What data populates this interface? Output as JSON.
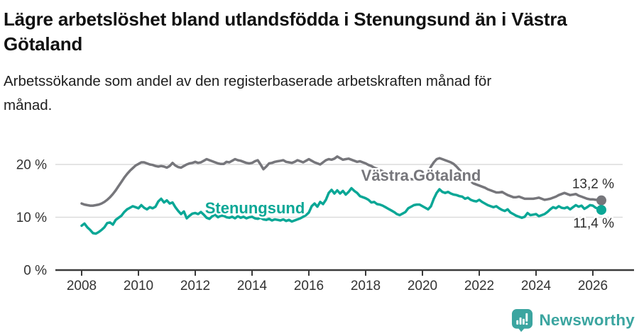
{
  "header": {
    "title": "Lägre arbetslöshet bland utlandsfödda i Stenungsund än i Västra Götaland",
    "subtitle": "Arbetssökande som andel av den registerbaserade arbetskraften månad för månad."
  },
  "footer": {
    "brand_name": "Newsworthy",
    "logo_icon": "bar-chart-speech-bubble-icon",
    "brand_color": "#3ba5a0"
  },
  "colors": {
    "stenungsund_line": "#0aa796",
    "vastra_gotaland_line": "#76767b",
    "axis": "#3a3a3a",
    "grid": "#dcdcdc",
    "text": "#111111"
  },
  "chart_data": {
    "type": "line",
    "title": "Lägre arbetslöshet bland utlandsfödda i Stenungsund än i Västra Götaland",
    "subtitle": "Arbetssökande som andel av den registerbaserade arbetskraften månad för månad.",
    "xlabel": "",
    "ylabel": "",
    "y_unit": "%",
    "ylim": [
      0,
      25
    ],
    "xlim": [
      2007.1,
      2027.5
    ],
    "grid": "horizontal",
    "legend_position": "inline-labels",
    "x_tick_values": [
      2008,
      2010,
      2012,
      2014,
      2016,
      2018,
      2020,
      2022,
      2024,
      2026
    ],
    "x_tick_labels": [
      "2008",
      "2010",
      "2012",
      "2014",
      "2016",
      "2018",
      "2020",
      "2022",
      "2024",
      "2026"
    ],
    "y_tick_values": [
      0,
      10,
      20
    ],
    "y_tick_labels": [
      "0 %",
      "10 %",
      "20 %"
    ],
    "x_start": 2008.0,
    "x_step": 0.1,
    "series": [
      {
        "name": "Västra Götaland",
        "color": "#76767b",
        "end_label": "13,2 %",
        "end_value": 13.2,
        "inline_label_pos": {
          "x": 2019.95,
          "y": 18.0
        },
        "end_label_side": "above",
        "values": [
          12.6,
          12.4,
          12.3,
          12.2,
          12.2,
          12.3,
          12.4,
          12.6,
          12.9,
          13.3,
          13.8,
          14.4,
          15.1,
          15.9,
          16.7,
          17.5,
          18.2,
          18.8,
          19.3,
          19.8,
          20.1,
          20.4,
          20.4,
          20.2,
          20.0,
          19.9,
          19.7,
          19.6,
          19.7,
          19.6,
          19.4,
          19.7,
          20.3,
          19.8,
          19.5,
          19.4,
          19.7,
          20.0,
          20.2,
          20.3,
          20.5,
          20.3,
          20.4,
          20.7,
          21.0,
          20.8,
          20.6,
          20.4,
          20.2,
          20.1,
          20.1,
          20.5,
          20.4,
          20.7,
          21.0,
          20.8,
          20.7,
          20.5,
          20.3,
          20.2,
          20.3,
          20.6,
          20.8,
          20.0,
          19.1,
          19.6,
          20.2,
          20.3,
          20.5,
          20.6,
          20.7,
          20.8,
          20.5,
          20.4,
          20.3,
          20.5,
          20.8,
          20.6,
          20.4,
          20.7,
          21.0,
          20.7,
          20.4,
          20.2,
          20.0,
          20.4,
          20.8,
          21.0,
          20.9,
          21.1,
          21.5,
          21.2,
          20.9,
          21.0,
          21.1,
          20.9,
          20.7,
          20.5,
          20.6,
          20.4,
          20.2,
          19.9,
          19.7,
          19.4,
          19.2,
          18.9,
          18.7,
          18.5,
          18.3,
          18.1,
          17.9,
          17.7,
          17.6,
          17.5,
          17.4,
          17.3,
          17.2,
          17.2,
          17.1,
          17.2,
          17.4,
          17.8,
          18.6,
          19.6,
          20.4,
          21.0,
          21.2,
          21.0,
          20.8,
          20.6,
          20.4,
          20.1,
          19.6,
          19.0,
          18.4,
          17.8,
          17.2,
          16.8,
          16.4,
          16.2,
          16.0,
          15.8,
          15.6,
          15.3,
          15.1,
          14.9,
          14.7,
          14.7,
          14.8,
          14.5,
          14.2,
          14.0,
          13.8,
          13.8,
          13.9,
          13.7,
          13.5,
          13.5,
          13.5,
          13.5,
          13.6,
          13.7,
          13.5,
          13.3,
          13.4,
          13.5,
          13.7,
          13.9,
          14.2,
          14.4,
          14.6,
          14.4,
          14.2,
          14.3,
          14.4,
          14.1,
          13.9,
          13.7,
          13.5,
          13.4,
          13.4,
          13.3,
          13.3,
          13.2
        ]
      },
      {
        "name": "Stenungsund",
        "color": "#0aa796",
        "end_label": "11,4 %",
        "end_value": 11.4,
        "inline_label_pos": {
          "x": 2014.1,
          "y": 11.8
        },
        "end_label_side": "below",
        "values": [
          8.4,
          8.8,
          8.1,
          7.6,
          7.0,
          6.9,
          7.2,
          7.6,
          8.1,
          8.9,
          9.0,
          8.6,
          9.5,
          9.9,
          10.3,
          11.0,
          11.5,
          11.8,
          12.1,
          11.9,
          11.7,
          12.3,
          11.8,
          11.5,
          11.9,
          11.7,
          12.0,
          13.0,
          13.5,
          12.8,
          13.2,
          12.6,
          12.8,
          11.9,
          11.2,
          10.6,
          11.1,
          9.8,
          10.3,
          10.7,
          10.8,
          10.6,
          11.0,
          10.5,
          9.9,
          9.7,
          10.2,
          10.5,
          10.0,
          10.3,
          10.3,
          10.0,
          9.9,
          10.1,
          9.8,
          10.2,
          9.9,
          10.1,
          9.8,
          10.0,
          10.1,
          9.8,
          9.7,
          9.9,
          9.6,
          9.5,
          9.7,
          9.4,
          9.6,
          9.5,
          9.4,
          9.6,
          9.3,
          9.5,
          9.2,
          9.4,
          9.6,
          9.8,
          10.1,
          10.4,
          10.9,
          12.1,
          12.6,
          12.0,
          12.9,
          12.5,
          13.3,
          14.6,
          15.2,
          14.5,
          15.1,
          14.5,
          15.0,
          14.3,
          14.8,
          15.5,
          15.0,
          14.6,
          14.0,
          13.8,
          13.6,
          13.3,
          12.8,
          12.9,
          12.5,
          12.4,
          12.2,
          11.9,
          11.6,
          11.3,
          11.0,
          10.6,
          10.4,
          10.7,
          11.0,
          11.7,
          12.0,
          12.3,
          12.4,
          12.4,
          12.1,
          11.8,
          11.5,
          12.1,
          13.5,
          14.6,
          15.3,
          14.8,
          14.6,
          14.8,
          14.5,
          14.3,
          14.2,
          14.0,
          13.9,
          13.5,
          13.7,
          13.3,
          13.1,
          13.0,
          13.3,
          12.9,
          12.6,
          12.3,
          12.1,
          11.9,
          12.1,
          11.7,
          11.4,
          11.2,
          11.5,
          10.9,
          10.6,
          10.3,
          10.1,
          9.9,
          10.1,
          10.8,
          10.4,
          10.5,
          10.6,
          10.2,
          10.4,
          10.6,
          11.0,
          11.5,
          11.9,
          11.7,
          12.1,
          11.8,
          11.7,
          11.9,
          11.5,
          11.9,
          12.3,
          12.0,
          12.2,
          11.6,
          11.9,
          12.3,
          12.2,
          11.8,
          11.6,
          11.4
        ]
      }
    ]
  }
}
